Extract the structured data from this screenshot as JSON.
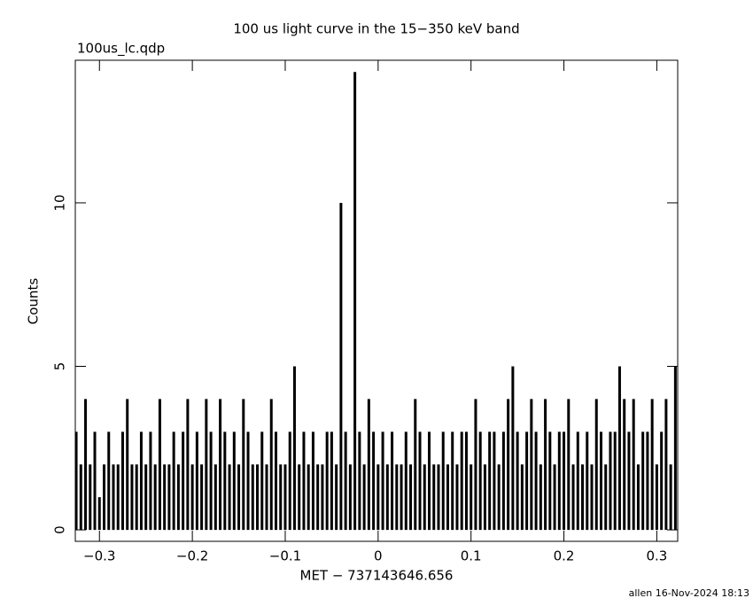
{
  "chart_data": {
    "type": "stick",
    "title": "100 us light curve in the 15−350 keV band",
    "subtitle": "100us_lc.qdp",
    "x_label": "MET − 737143646.656",
    "y_label": "Counts",
    "footer": "allen 16-Nov-2024 18:13",
    "color": "#000000",
    "xlim": [
      -0.326,
      0.3225
    ],
    "ylim": [
      -0.35,
      14.36
    ],
    "xticks": [
      {
        "value": -0.3,
        "label": "−0.3"
      },
      {
        "value": -0.2,
        "label": "−0.2"
      },
      {
        "value": -0.1,
        "label": "−0.1"
      },
      0,
      0.1,
      0.2,
      0.3
    ],
    "yticks": [
      0,
      5,
      10
    ],
    "x": [
      -0.325,
      -0.32,
      -0.315,
      -0.31,
      -0.305,
      -0.3,
      -0.295,
      -0.29,
      -0.285,
      -0.28,
      -0.275,
      -0.27,
      -0.265,
      -0.26,
      -0.255,
      -0.25,
      -0.245,
      -0.24,
      -0.235,
      -0.23,
      -0.225,
      -0.22,
      -0.215,
      -0.21,
      -0.205,
      -0.2,
      -0.195,
      -0.19,
      -0.185,
      -0.18,
      -0.175,
      -0.17,
      -0.165,
      -0.16,
      -0.155,
      -0.15,
      -0.145,
      -0.14,
      -0.135,
      -0.13,
      -0.125,
      -0.12,
      -0.115,
      -0.11,
      -0.105,
      -0.1,
      -0.095,
      -0.09,
      -0.085,
      -0.08,
      -0.075,
      -0.07,
      -0.065,
      -0.06,
      -0.055,
      -0.05,
      -0.045,
      -0.04,
      -0.035,
      -0.03,
      -0.025,
      -0.02,
      -0.015,
      -0.01,
      -0.005,
      0,
      0.005,
      0.01,
      0.015,
      0.02,
      0.025,
      0.03,
      0.035,
      0.04,
      0.045,
      0.05,
      0.055,
      0.06,
      0.065,
      0.07,
      0.075,
      0.08,
      0.085,
      0.09,
      0.095,
      0.1,
      0.105,
      0.11,
      0.115,
      0.12,
      0.125,
      0.13,
      0.135,
      0.14,
      0.145,
      0.15,
      0.155,
      0.16,
      0.165,
      0.17,
      0.175,
      0.18,
      0.185,
      0.19,
      0.195,
      0.2,
      0.205,
      0.21,
      0.215,
      0.22,
      0.225,
      0.23,
      0.235,
      0.24,
      0.245,
      0.25,
      0.255,
      0.26,
      0.265,
      0.27,
      0.275,
      0.28,
      0.285,
      0.29,
      0.295,
      0.3,
      0.305,
      0.31,
      0.315,
      0.32
    ],
    "values": [
      3,
      2,
      4,
      2,
      3,
      1,
      2,
      3,
      2,
      2,
      3,
      4,
      2,
      2,
      3,
      2,
      3,
      2,
      4,
      2,
      2,
      3,
      2,
      3,
      4,
      2,
      3,
      2,
      4,
      3,
      2,
      4,
      3,
      2,
      3,
      2,
      4,
      3,
      2,
      2,
      3,
      2,
      4,
      3,
      2,
      2,
      3,
      5,
      2,
      3,
      2,
      3,
      2,
      2,
      3,
      3,
      2,
      10,
      3,
      2,
      14,
      3,
      2,
      4,
      3,
      2,
      3,
      2,
      3,
      2,
      2,
      3,
      2,
      4,
      3,
      2,
      3,
      2,
      2,
      3,
      2,
      3,
      2,
      3,
      3,
      2,
      4,
      3,
      2,
      3,
      3,
      2,
      3,
      4,
      5,
      3,
      2,
      3,
      4,
      3,
      2,
      4,
      3,
      2,
      3,
      3,
      4,
      2,
      3,
      2,
      3,
      2,
      4,
      3,
      2,
      3,
      3,
      5,
      4,
      3,
      4,
      2,
      3,
      3,
      4,
      2,
      3,
      4,
      2,
      5
    ]
  }
}
